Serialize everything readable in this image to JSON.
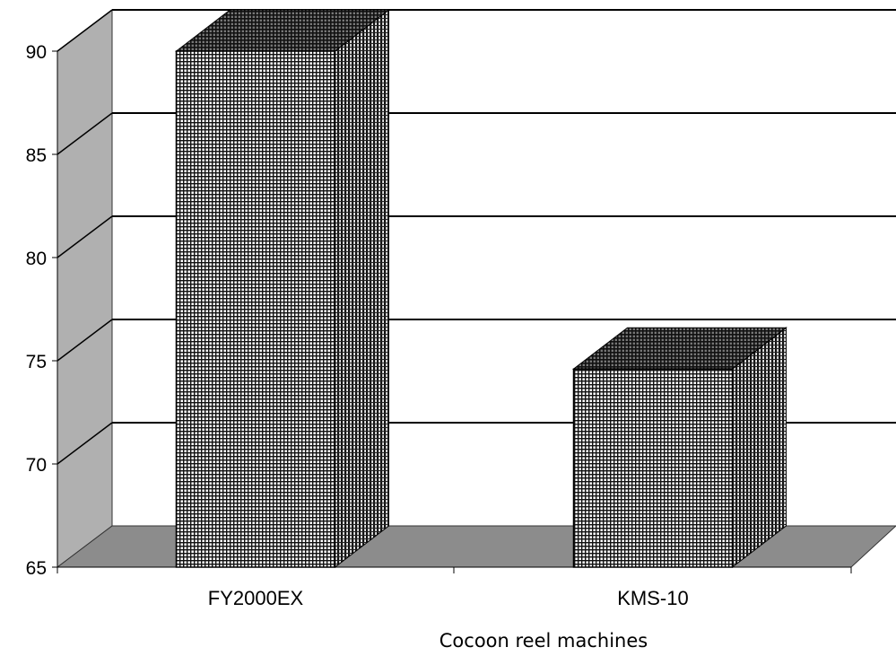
{
  "chart_data": {
    "type": "bar",
    "categories": [
      "FY2000EX",
      "KMS-10"
    ],
    "values": [
      90,
      74.6
    ],
    "xlabel": "Cocoon reel machines",
    "ylabel": "",
    "ylim": [
      65,
      90
    ],
    "yticks": [
      "65",
      "70",
      "75",
      "80",
      "85",
      "90"
    ],
    "grid": true,
    "three_d": true,
    "colors": {
      "bar_pattern": "#000000",
      "bar_face": "#ffffff",
      "wall_side": "#b0b0b0",
      "floor": "#8c8c8c",
      "grid": "#000000"
    }
  }
}
